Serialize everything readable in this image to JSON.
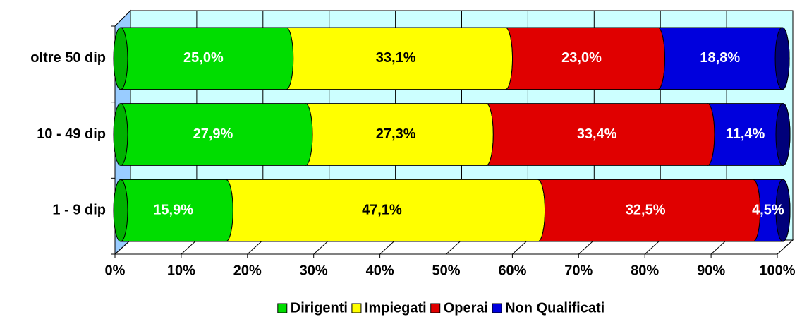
{
  "chart_data": {
    "type": "bar",
    "orientation": "horizontal",
    "stacked": true,
    "categories": [
      "oltre 50 dip",
      "10 - 49 dip",
      "1 - 9 dip"
    ],
    "series": [
      {
        "name": "Dirigenti",
        "color": "#00dd00",
        "values": [
          25.0,
          27.9,
          15.9
        ],
        "value_labels": [
          "25,0%",
          "27,9%",
          "15,9%"
        ]
      },
      {
        "name": "Impiegati",
        "color": "#ffff00",
        "values": [
          33.1,
          27.3,
          47.1
        ],
        "value_labels": [
          "33,1%",
          "27,3%",
          "47,1%"
        ]
      },
      {
        "name": "Operai",
        "color": "#e00000",
        "values": [
          23.0,
          33.4,
          32.5
        ],
        "value_labels": [
          "23,0%",
          "33,4%",
          "32,5%"
        ]
      },
      {
        "name": "Non Qualificati",
        "color": "#0000dd",
        "values": [
          18.8,
          11.4,
          4.5
        ],
        "value_labels": [
          "18,8%",
          "11,4%",
          "4,5%"
        ]
      }
    ],
    "xlim": [
      0,
      100
    ],
    "xticks": [
      {
        "value": 0,
        "label": "0%"
      },
      {
        "value": 10,
        "label": "10%"
      },
      {
        "value": 20,
        "label": "20%"
      },
      {
        "value": 30,
        "label": "30%"
      },
      {
        "value": 40,
        "label": "40%"
      },
      {
        "value": 50,
        "label": "50%"
      },
      {
        "value": 60,
        "label": "60%"
      },
      {
        "value": 70,
        "label": "70%"
      },
      {
        "value": 80,
        "label": "80%"
      },
      {
        "value": 90,
        "label": "90%"
      },
      {
        "value": 100,
        "label": "100%"
      }
    ],
    "grid": true,
    "legend": "bottom"
  }
}
